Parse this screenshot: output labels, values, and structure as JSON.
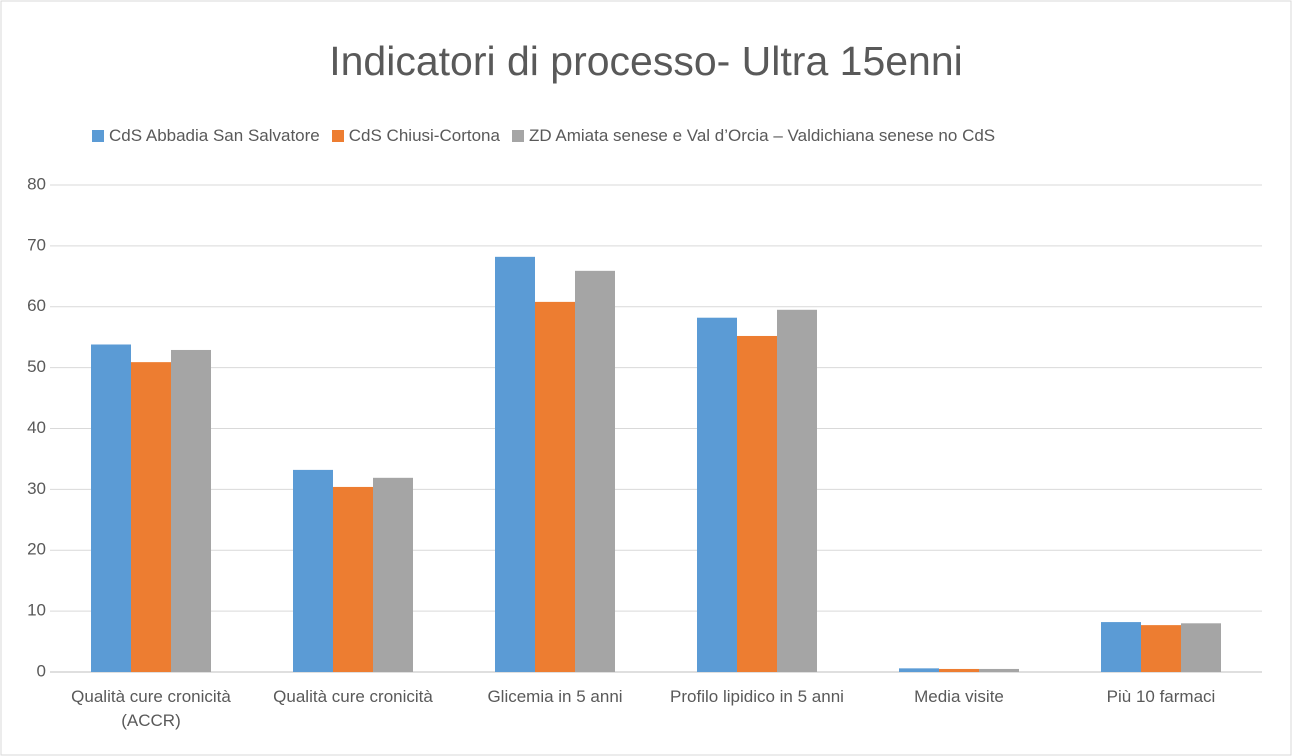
{
  "chart_data": {
    "type": "bar",
    "title": "Indicatori di processo- Ultra 15enni",
    "categories": [
      "Qualità cure cronicità (ACCR)",
      "Qualità cure cronicità",
      "Glicemia in 5 anni",
      "Profilo lipidico in 5 anni",
      "Media visite",
      "Più 10 farmaci"
    ],
    "series": [
      {
        "name": "CdS Abbadia San Salvatore",
        "color": "#5b9bd5",
        "values": [
          53.8,
          33.2,
          68.2,
          58.2,
          0.6,
          8.2
        ]
      },
      {
        "name": "CdS Chiusi-Cortona",
        "color": "#ed7d31",
        "values": [
          50.9,
          30.4,
          60.8,
          55.2,
          0.5,
          7.7
        ]
      },
      {
        "name": "ZD Amiata senese e Val d’Orcia – Valdichiana senese no CdS",
        "color": "#a5a5a5",
        "values": [
          52.9,
          31.9,
          65.9,
          59.5,
          0.5,
          8.0
        ]
      }
    ],
    "ylim": [
      0,
      80
    ],
    "yticks": [
      0,
      10,
      20,
      30,
      40,
      50,
      60,
      70,
      80
    ],
    "grid": true,
    "legend": "top"
  }
}
